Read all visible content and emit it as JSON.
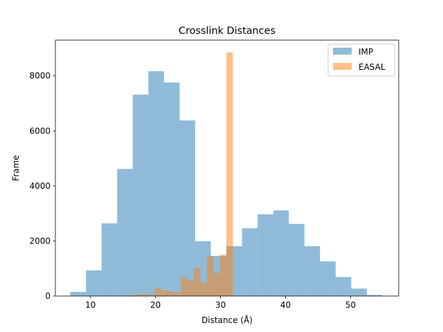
{
  "chart_data": {
    "type": "bar",
    "title": "Crosslink Distances",
    "xlabel": "Distance (Å)",
    "ylabel": "Frame",
    "xlim": [
      4.6,
      57.4
    ],
    "ylim": [
      0,
      9300
    ],
    "xticks": [
      10,
      20,
      30,
      40,
      50
    ],
    "yticks": [
      0,
      2000,
      4000,
      6000,
      8000
    ],
    "legend_position": "top-right",
    "series": [
      {
        "name": "IMP",
        "color": "#1f77b4",
        "opacity": 0.5,
        "bin_edges": [
          6.9,
          9.3,
          11.7,
          14.1,
          16.5,
          18.9,
          21.3,
          23.7,
          26.1,
          28.5,
          30.9,
          33.3,
          35.7,
          38.1,
          40.5,
          42.9,
          45.3,
          47.7,
          50.1,
          52.5,
          54.9
        ],
        "counts": [
          150,
          930,
          2640,
          4620,
          7320,
          8170,
          7760,
          6380,
          1990,
          1460,
          1810,
          2460,
          2970,
          3110,
          2620,
          1810,
          1260,
          690,
          270,
          40
        ]
      },
      {
        "name": "EASAL",
        "color": "#ff7f0e",
        "opacity": 0.5,
        "bin_edges": [
          14.9,
          15.9,
          16.9,
          17.9,
          18.9,
          19.9,
          20.9,
          21.9,
          22.9,
          23.9,
          24.9,
          25.9,
          26.9,
          27.9,
          28.9,
          29.9,
          30.9,
          31.9
        ],
        "counts": [
          15,
          30,
          50,
          70,
          60,
          290,
          200,
          160,
          130,
          670,
          560,
          1010,
          480,
          1440,
          830,
          1500,
          8850
        ]
      }
    ]
  }
}
